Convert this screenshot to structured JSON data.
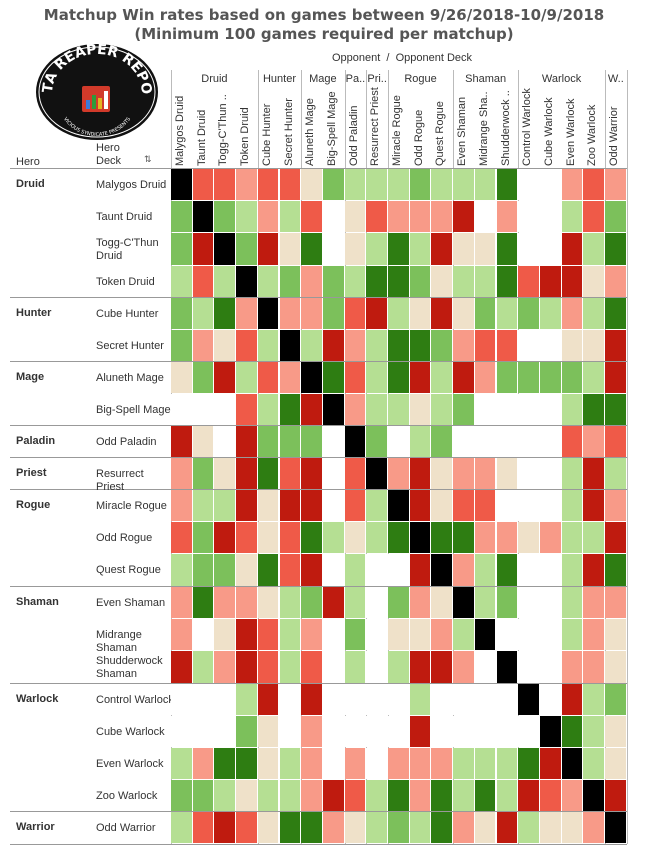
{
  "title": {
    "line1": "Matchup Win rates based on games between 9/26/2018-10/9/2018",
    "line2": "(Minimum 100 games required per matchup)"
  },
  "logo": {
    "text_top": "DATA REAPER REPORT",
    "text_bottom": "VICIOUS SYNDICATE PRESENTS"
  },
  "header": {
    "opponent_label": "Opponent  /  Opponent Deck",
    "hero_label": "Hero",
    "hero_deck_label": "Hero\nDeck"
  },
  "colors": {
    "self": "#000000",
    "strong_fav": "#2e7d12",
    "fav": "#7cc05b",
    "slight_fav": "#b5df93",
    "even": "#efe1c9",
    "slight_unfav": "#f89a88",
    "unfav": "#ef5a48",
    "strong_unfav": "#bf1b0f",
    "na": "#ffffff"
  },
  "chart_data": {
    "type": "heatmap",
    "title": "Matchup Win rates based on games between 9/26/2018-10/9/2018",
    "subtitle": "(Minimum 100 games required per matchup)",
    "legend": "none",
    "grid": true,
    "column_groups": [
      {
        "label": "Druid",
        "span": 4
      },
      {
        "label": "Hunter",
        "span": 2
      },
      {
        "label": "Mage",
        "span": 2
      },
      {
        "label": "Pa..",
        "span": 1
      },
      {
        "label": "Pri..",
        "span": 1
      },
      {
        "label": "Rogue",
        "span": 3
      },
      {
        "label": "Shaman",
        "span": 3
      },
      {
        "label": "Warlock",
        "span": 4
      },
      {
        "label": "W..",
        "span": 1
      }
    ],
    "columns": [
      "Malygos Druid",
      "Taunt Druid",
      "Togg-C'Thun ..",
      "Token Druid",
      "Cube Hunter",
      "Secret Hunter",
      "Aluneth Mage",
      "Big-Spell Mage",
      "Odd Paladin",
      "Resurrect Priest",
      "Miracle Rogue",
      "Odd Rogue",
      "Quest Rogue",
      "Even Shaman",
      "Midrange Sha..",
      "Shudderwock ..",
      "Control Warlock",
      "Cube Warlock",
      "Even Warlock",
      "Zoo Warlock",
      "Odd Warrior"
    ],
    "row_groups": [
      {
        "label": "Druid",
        "span": 4
      },
      {
        "label": "Hunter",
        "span": 2
      },
      {
        "label": "Mage",
        "span": 2
      },
      {
        "label": "Paladin",
        "span": 1
      },
      {
        "label": "Priest",
        "span": 1
      },
      {
        "label": "Rogue",
        "span": 3
      },
      {
        "label": "Shaman",
        "span": 3
      },
      {
        "label": "Warlock",
        "span": 4
      },
      {
        "label": "Warrior",
        "span": 1
      }
    ],
    "rows": [
      "Malygos Druid",
      "Taunt Druid",
      "Togg-C'Thun Druid",
      "Token Druid",
      "Cube Hunter",
      "Secret Hunter",
      "Aluneth Mage",
      "Big-Spell Mage",
      "Odd Paladin",
      "Resurrect Priest",
      "Miracle Rogue",
      "Odd Rogue",
      "Quest Rogue",
      "Even Shaman",
      "Midrange Shaman",
      "Shudderwock Shaman",
      "Control Warlock",
      "Cube Warlock",
      "Even Warlock",
      "Zoo Warlock",
      "Odd Warrior"
    ],
    "values": [
      [
        "X",
        "U",
        "U",
        "u",
        "U",
        "U",
        "E",
        "F",
        "s",
        "s",
        "s",
        "F",
        "s",
        "s",
        "s",
        "G",
        "-",
        "-",
        "u",
        "U",
        "u"
      ],
      [
        "F",
        "X",
        "F",
        "s",
        "u",
        "s",
        "U",
        "-",
        "E",
        "U",
        "u",
        "u",
        "u",
        "R",
        "-",
        "u",
        "-",
        "-",
        "s",
        "U",
        "F"
      ],
      [
        "F",
        "R",
        "X",
        "F",
        "R",
        "E",
        "G",
        "-",
        "E",
        "s",
        "G",
        "s",
        "R",
        "E",
        "E",
        "G",
        "-",
        "-",
        "R",
        "s",
        "G"
      ],
      [
        "s",
        "U",
        "s",
        "X",
        "s",
        "F",
        "u",
        "F",
        "s",
        "G",
        "G",
        "F",
        "E",
        "s",
        "s",
        "G",
        "U",
        "R",
        "R",
        "E",
        "u"
      ],
      [
        "F",
        "s",
        "G",
        "u",
        "X",
        "u",
        "u",
        "F",
        "U",
        "R",
        "s",
        "E",
        "R",
        "E",
        "F",
        "s",
        "F",
        "s",
        "u",
        "s",
        "G"
      ],
      [
        "F",
        "u",
        "E",
        "U",
        "s",
        "X",
        "s",
        "R",
        "u",
        "s",
        "G",
        "G",
        "F",
        "u",
        "U",
        "U",
        "-",
        "-",
        "E",
        "E",
        "R"
      ],
      [
        "E",
        "F",
        "R",
        "s",
        "U",
        "u",
        "X",
        "G",
        "U",
        "s",
        "G",
        "R",
        "s",
        "R",
        "u",
        "F",
        "F",
        "F",
        "F",
        "s",
        "R"
      ],
      [
        "-",
        "-",
        "-",
        "U",
        "s",
        "G",
        "R",
        "X",
        "u",
        "s",
        "s",
        "E",
        "s",
        "F",
        "-",
        "-",
        "-",
        "-",
        "s",
        "G",
        "G"
      ],
      [
        "R",
        "E",
        "-",
        "R",
        "F",
        "F",
        "F",
        "-",
        "X",
        "F",
        "-",
        "s",
        "F",
        "-",
        "-",
        "-",
        "-",
        "-",
        "U",
        "u",
        "U"
      ],
      [
        "u",
        "F",
        "E",
        "R",
        "G",
        "U",
        "R",
        "-",
        "U",
        "X",
        "u",
        "R",
        "E",
        "u",
        "u",
        "E",
        "-",
        "-",
        "s",
        "R",
        "s"
      ],
      [
        "u",
        "s",
        "s",
        "R",
        "E",
        "R",
        "R",
        "-",
        "U",
        "s",
        "X",
        "R",
        "E",
        "U",
        "U",
        "-",
        "-",
        "-",
        "s",
        "R",
        "u"
      ],
      [
        "U",
        "F",
        "R",
        "U",
        "E",
        "U",
        "G",
        "s",
        "E",
        "s",
        "G",
        "X",
        "G",
        "G",
        "u",
        "u",
        "E",
        "u",
        "s",
        "s",
        "R"
      ],
      [
        "s",
        "F",
        "F",
        "E",
        "G",
        "U",
        "R",
        "-",
        "s",
        "-",
        "-",
        "R",
        "X",
        "u",
        "s",
        "G",
        "-",
        "-",
        "s",
        "R",
        "G"
      ],
      [
        "u",
        "G",
        "u",
        "u",
        "E",
        "s",
        "F",
        "R",
        "s",
        "-",
        "F",
        "u",
        "E",
        "X",
        "s",
        "F",
        "-",
        "-",
        "s",
        "u",
        "u"
      ],
      [
        "u",
        "-",
        "E",
        "R",
        "U",
        "s",
        "u",
        "-",
        "F",
        "-",
        "E",
        "E",
        "u",
        "s",
        "X",
        "-",
        "-",
        "-",
        "s",
        "u",
        "E"
      ],
      [
        "R",
        "s",
        "u",
        "R",
        "U",
        "s",
        "U",
        "-",
        "s",
        "-",
        "s",
        "R",
        "R",
        "u",
        "-",
        "X",
        "-",
        "-",
        "u",
        "u",
        "E"
      ],
      [
        "-",
        "-",
        "-",
        "s",
        "R",
        "-",
        "R",
        "-",
        "-",
        "-",
        "-",
        "s",
        "-",
        "-",
        "-",
        "-",
        "X",
        "-",
        "R",
        "s",
        "F"
      ],
      [
        "-",
        "-",
        "-",
        "F",
        "E",
        "-",
        "u",
        "-",
        "-",
        "-",
        "-",
        "R",
        "-",
        "-",
        "-",
        "-",
        "-",
        "X",
        "G",
        "s",
        "E"
      ],
      [
        "s",
        "u",
        "G",
        "G",
        "E",
        "s",
        "u",
        "-",
        "u",
        "-",
        "u",
        "u",
        "u",
        "s",
        "s",
        "s",
        "G",
        "R",
        "X",
        "s",
        "E"
      ],
      [
        "F",
        "F",
        "s",
        "E",
        "s",
        "s",
        "u",
        "R",
        "U",
        "s",
        "G",
        "u",
        "G",
        "s",
        "G",
        "s",
        "R",
        "U",
        "u",
        "X",
        "R"
      ],
      [
        "s",
        "U",
        "R",
        "U",
        "E",
        "G",
        "G",
        "u",
        "E",
        "s",
        "F",
        "s",
        "G",
        "u",
        "E",
        "R",
        "s",
        "E",
        "E",
        "u",
        "X"
      ]
    ],
    "value_legend": {
      "X": "self",
      "G": "strong_fav",
      "F": "fav",
      "s": "slight_fav",
      "E": "even",
      "u": "slight_unfav",
      "U": "unfav",
      "R": "strong_unfav",
      "-": "na"
    }
  }
}
